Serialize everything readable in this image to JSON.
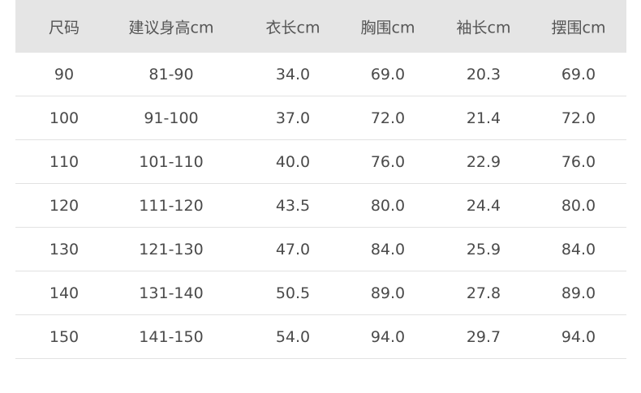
{
  "table": {
    "headers": [
      "尺码",
      "建议身高cm",
      "衣长cm",
      "胸围cm",
      "袖长cm",
      "摆围cm"
    ],
    "rows": [
      [
        "90",
        "81-90",
        "34.0",
        "69.0",
        "20.3",
        "69.0"
      ],
      [
        "100",
        "91-100",
        "37.0",
        "72.0",
        "21.4",
        "72.0"
      ],
      [
        "110",
        "101-110",
        "40.0",
        "76.0",
        "22.9",
        "76.0"
      ],
      [
        "120",
        "111-120",
        "43.5",
        "80.0",
        "24.4",
        "80.0"
      ],
      [
        "130",
        "121-130",
        "47.0",
        "84.0",
        "25.9",
        "84.0"
      ],
      [
        "140",
        "131-140",
        "50.5",
        "89.0",
        "27.8",
        "89.0"
      ],
      [
        "150",
        "141-150",
        "54.0",
        "94.0",
        "29.7",
        "94.0"
      ]
    ]
  },
  "colors": {
    "header_bg": "#e5e5e5",
    "divider": "#e2e2e2",
    "text": "#4a4a4a"
  }
}
